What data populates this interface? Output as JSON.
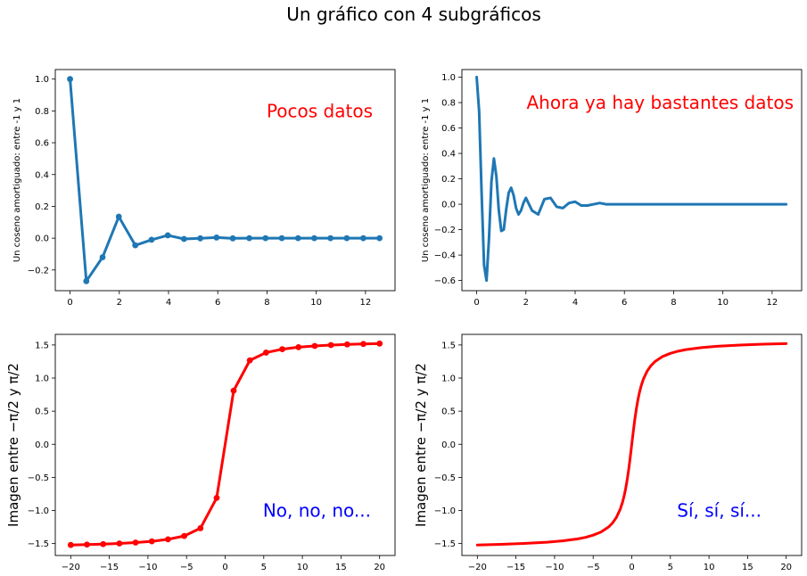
{
  "suptitle": "Un gráfico con 4 subgráficos",
  "colors": {
    "blue": "#1f77b4",
    "red": "#ff0000",
    "anno_red": "#ff0000",
    "anno_blue": "#0000ff"
  },
  "chart_data": [
    {
      "type": "line",
      "position": "top-left",
      "markers": true,
      "color": "#1f77b4",
      "ylabel": "Un coseno amortiguado: entre -1 y 1",
      "annotation": "Pocos datos",
      "xlim": [
        -0.6,
        13.2
      ],
      "ylim": [
        -0.33,
        1.06
      ],
      "xticks": [
        0,
        2,
        4,
        6,
        8,
        10,
        12
      ],
      "yticks": [
        -0.2,
        0.0,
        0.2,
        0.4,
        0.6,
        0.8,
        1.0
      ],
      "x": [
        0,
        0.66,
        1.32,
        1.98,
        2.65,
        3.31,
        3.97,
        4.63,
        5.29,
        5.95,
        6.61,
        7.28,
        7.94,
        8.6,
        9.26,
        9.92,
        10.58,
        11.24,
        11.91,
        12.57
      ],
      "y": [
        1.0,
        -0.27,
        -0.12,
        0.135,
        -0.045,
        -0.01,
        0.018,
        -0.005,
        -0.001,
        0.004,
        -0.001,
        0.0,
        0.0,
        0.0,
        0.0,
        0.0,
        0.0,
        0.0,
        0.0,
        0.0
      ]
    },
    {
      "type": "line",
      "position": "top-right",
      "markers": false,
      "color": "#1f77b4",
      "ylabel": "Un coseno amortiguado: entre -1 y 1",
      "annotation": "Ahora ya hay bastantes datos",
      "xlim": [
        -0.6,
        13.2
      ],
      "ylim": [
        -0.68,
        1.06
      ],
      "xticks": [
        0,
        2,
        4,
        6,
        8,
        10,
        12
      ],
      "yticks": [
        -0.6,
        -0.4,
        -0.2,
        0.0,
        0.2,
        0.4,
        0.6,
        0.8,
        1.0
      ],
      "x": [
        0,
        0.1,
        0.2,
        0.3,
        0.4,
        0.5,
        0.6,
        0.7,
        0.8,
        0.9,
        1.0,
        1.1,
        1.2,
        1.3,
        1.4,
        1.5,
        1.6,
        1.7,
        1.8,
        1.9,
        2.0,
        2.25,
        2.5,
        2.75,
        3.0,
        3.25,
        3.5,
        3.75,
        4.0,
        4.25,
        4.5,
        4.75,
        5.0,
        5.25,
        5.5,
        5.75,
        6.0,
        6.5,
        7.0,
        8.0,
        9.0,
        10.0,
        11.0,
        12.57
      ],
      "y": [
        1.0,
        0.73,
        0.09,
        -0.48,
        -0.6,
        -0.27,
        0.18,
        0.36,
        0.22,
        -0.05,
        -0.21,
        -0.2,
        -0.04,
        0.09,
        0.13,
        0.07,
        -0.03,
        -0.08,
        -0.05,
        0.01,
        0.05,
        -0.05,
        -0.08,
        0.04,
        0.05,
        -0.02,
        -0.03,
        0.01,
        0.02,
        -0.01,
        -0.01,
        0.0,
        0.01,
        0.0,
        0.0,
        0.0,
        0.0,
        0.0,
        0.0,
        0.0,
        0.0,
        0.0,
        0.0,
        0.0
      ]
    },
    {
      "type": "line",
      "position": "bottom-left",
      "markers": true,
      "color": "#ff0000",
      "ylabel": "Imagen entre −π/2 y π/2",
      "annotation": "No, no, no...",
      "xlim": [
        -22,
        22
      ],
      "ylim": [
        -1.68,
        1.66
      ],
      "xticks": [
        -20,
        -15,
        -10,
        -5,
        0,
        5,
        10,
        15,
        20
      ],
      "yticks": [
        -1.5,
        -1.0,
        -0.5,
        0.0,
        0.5,
        1.0,
        1.5
      ],
      "x": [
        -20,
        -17.9,
        -15.8,
        -13.7,
        -11.6,
        -9.5,
        -7.4,
        -5.3,
        -3.2,
        -1.1,
        1.1,
        3.2,
        5.3,
        7.4,
        9.5,
        11.6,
        13.7,
        15.8,
        17.9,
        20
      ],
      "y": [
        -1.521,
        -1.515,
        -1.508,
        -1.498,
        -1.485,
        -1.466,
        -1.436,
        -1.385,
        -1.268,
        -0.81,
        0.81,
        1.268,
        1.385,
        1.436,
        1.466,
        1.485,
        1.498,
        1.508,
        1.515,
        1.521
      ]
    },
    {
      "type": "line",
      "position": "bottom-right",
      "markers": false,
      "color": "#ff0000",
      "ylabel": "Imagen entre −π/2 y π/2",
      "annotation": "Sí, sí, sí...",
      "xlim": [
        -22,
        22
      ],
      "ylim": [
        -1.68,
        1.66
      ],
      "xticks": [
        -20,
        -15,
        -10,
        -5,
        0,
        5,
        10,
        15,
        20
      ],
      "yticks": [
        -1.5,
        -1.0,
        -0.5,
        0.0,
        0.5,
        1.0,
        1.5
      ],
      "x": [
        -20,
        -17,
        -14,
        -11,
        -9,
        -7,
        -6,
        -5,
        -4,
        -3,
        -2.5,
        -2,
        -1.5,
        -1.2,
        -1,
        -0.8,
        -0.6,
        -0.4,
        -0.2,
        0,
        0.2,
        0.4,
        0.6,
        0.8,
        1,
        1.2,
        1.5,
        2,
        2.5,
        3,
        4,
        5,
        6,
        7,
        9,
        11,
        14,
        17,
        20
      ],
      "y": [
        -1.521,
        -1.512,
        -1.499,
        -1.48,
        -1.46,
        -1.429,
        -1.406,
        -1.373,
        -1.326,
        -1.249,
        -1.19,
        -1.107,
        -0.983,
        -0.876,
        -0.785,
        -0.675,
        -0.54,
        -0.381,
        -0.197,
        0,
        0.197,
        0.381,
        0.54,
        0.675,
        0.785,
        0.876,
        0.983,
        1.107,
        1.19,
        1.249,
        1.326,
        1.373,
        1.406,
        1.429,
        1.46,
        1.48,
        1.499,
        1.512,
        1.521
      ]
    }
  ]
}
